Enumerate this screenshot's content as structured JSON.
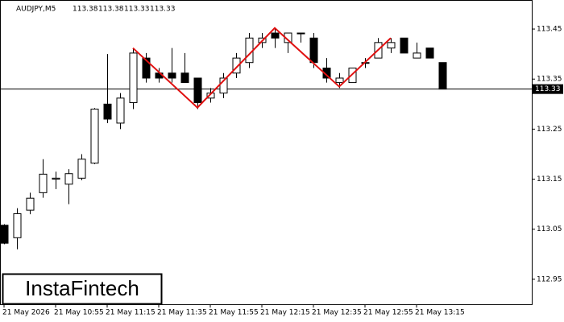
{
  "header": {
    "symbol": "AUDJPY,M5",
    "ohlc": [
      113.38,
      113.38,
      113.33,
      113.33
    ]
  },
  "logo": "InstaFintech",
  "chart_data": {
    "type": "candlestick",
    "categories": [
      "21 May 2026",
      null,
      null,
      null,
      "21 May 10:55",
      null,
      null,
      null,
      "21 May 11:15",
      null,
      null,
      null,
      "21 May 11:35",
      null,
      null,
      null,
      "21 May 11:55",
      null,
      null,
      null,
      "21 May 12:15",
      null,
      null,
      null,
      "21 May 12:35",
      null,
      null,
      null,
      "21 May 12:55",
      null,
      null,
      null,
      "21 May 13:15",
      null,
      null
    ],
    "open": [
      113.058,
      113.033,
      113.088,
      113.123,
      113.15,
      113.14,
      113.152,
      113.182,
      113.3,
      113.262,
      113.303,
      113.392,
      113.362,
      113.362,
      113.362,
      113.352,
      113.312,
      113.322,
      113.362,
      113.383,
      113.423,
      113.442,
      113.423,
      113.442,
      113.432,
      113.372,
      113.343,
      113.343,
      113.383,
      113.392,
      113.412,
      113.432,
      113.392,
      113.412,
      113.383
    ],
    "high": [
      113.06,
      113.092,
      113.123,
      113.19,
      113.165,
      113.17,
      113.2,
      113.292,
      113.4,
      113.322,
      113.412,
      113.402,
      113.372,
      113.412,
      113.402,
      113.352,
      113.332,
      113.362,
      113.402,
      113.442,
      113.442,
      113.452,
      113.442,
      113.442,
      113.442,
      113.392,
      113.362,
      113.372,
      113.392,
      113.432,
      113.432,
      113.432,
      113.423,
      113.412,
      113.383
    ],
    "low": [
      113.02,
      113.01,
      113.08,
      113.113,
      113.13,
      113.1,
      113.148,
      113.18,
      113.262,
      113.25,
      113.29,
      113.343,
      113.343,
      113.343,
      113.343,
      113.29,
      113.303,
      113.312,
      113.352,
      113.372,
      113.412,
      113.412,
      113.402,
      113.423,
      113.372,
      113.343,
      113.332,
      113.343,
      113.372,
      113.392,
      113.402,
      113.402,
      113.392,
      113.392,
      113.33
    ],
    "close": [
      113.022,
      113.081,
      113.112,
      113.16,
      113.152,
      113.161,
      113.19,
      113.29,
      113.27,
      113.312,
      113.402,
      113.352,
      113.352,
      113.352,
      113.343,
      113.303,
      113.322,
      113.352,
      113.392,
      113.432,
      113.432,
      113.432,
      113.442,
      113.442,
      113.383,
      113.352,
      113.352,
      113.372,
      113.383,
      113.423,
      113.423,
      113.402,
      113.402,
      113.392,
      113.33
    ],
    "ylim": [
      112.9,
      113.508
    ],
    "yticks": [
      112.95,
      113.05,
      113.15,
      113.25,
      113.35,
      113.45
    ],
    "current_price": 113.33,
    "up_color": "#ffffff",
    "down_color": "#000000",
    "pattern": {
      "color": "#e01010",
      "x": [
        10,
        15,
        21,
        26,
        30
      ],
      "values": [
        113.412,
        113.293,
        113.452,
        113.335,
        113.432
      ]
    }
  }
}
